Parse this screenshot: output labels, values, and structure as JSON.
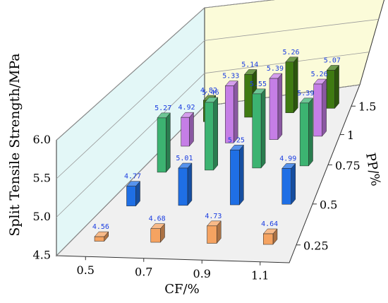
{
  "chart_data": {
    "type": "bar3d",
    "zlabel": "Split Tensile Strength/MPa",
    "xlabel": "CF/%",
    "ylabel": "PP/%",
    "categories": [
      "0.5",
      "0.7",
      "0.9",
      "1.1"
    ],
    "depth_categories": [
      "0.25",
      "0.5",
      "0.75",
      "1",
      "1.5"
    ],
    "series": [
      {
        "color": "#f5a361",
        "values": [
          4.56,
          4.68,
          4.73,
          4.64
        ]
      },
      {
        "color": "#1f6fe5",
        "values": [
          4.77,
          5.01,
          5.25,
          4.99
        ]
      },
      {
        "color": "#3cb371",
        "values": [
          5.27,
          5.46,
          5.55,
          5.39
        ]
      },
      {
        "color": "#c57ee6",
        "values": [
          4.92,
          5.33,
          5.39,
          5.26
        ]
      },
      {
        "color": "#3f7a12",
        "values": [
          4.82,
          5.14,
          5.26,
          5.07
        ]
      }
    ],
    "zlim": [
      4.5,
      6.0
    ],
    "zticks": [
      {
        "value": 4.5,
        "label": "4.5"
      },
      {
        "value": 5.0,
        "label": "5.0"
      },
      {
        "value": 5.5,
        "label": "5.5"
      },
      {
        "value": 6.0,
        "label": "6.0"
      }
    ]
  }
}
